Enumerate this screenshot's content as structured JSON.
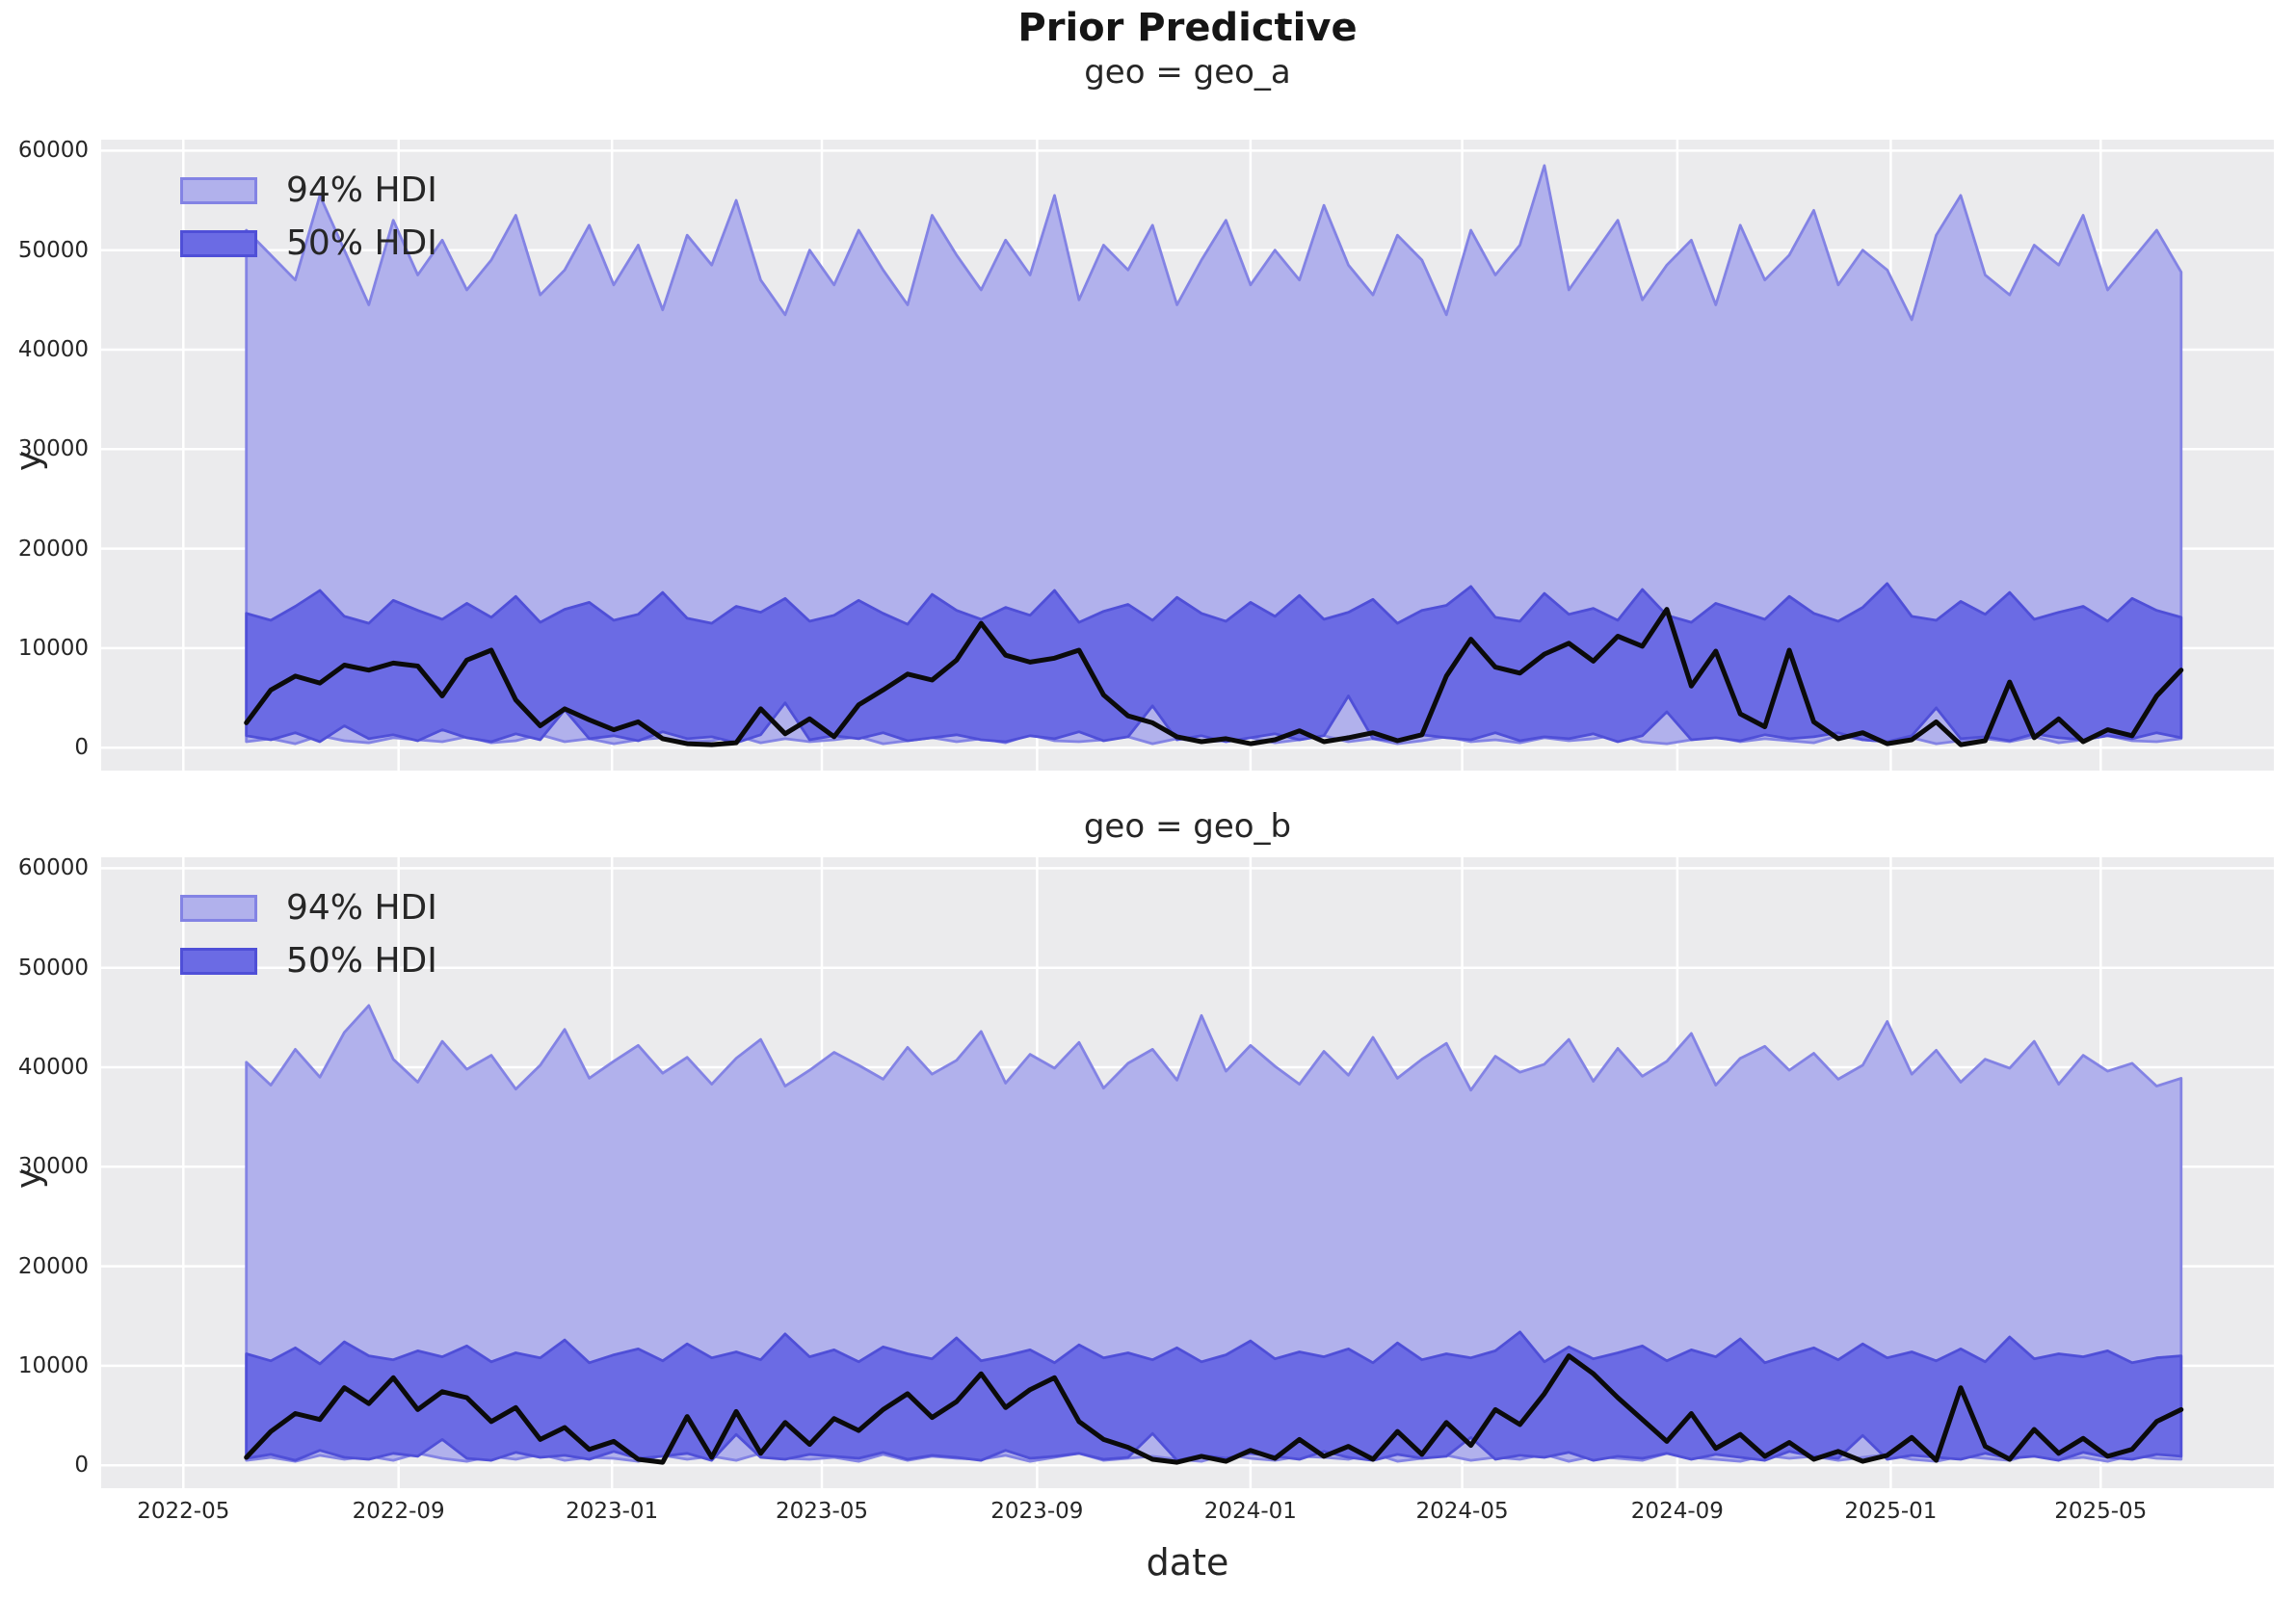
{
  "figure": {
    "title": "Prior Predictive"
  },
  "axis": {
    "xlabel": "date",
    "ylabel": "y"
  },
  "colors": {
    "axes_bg": "#ebebed",
    "grid": "#ffffff",
    "hdi94_fill": "#b1b1ec",
    "hdi94_edge": "#8383e4",
    "hdi50_fill": "#6b6be4",
    "hdi50_edge": "#4f4fd7",
    "observed_line": "#0b0b0b",
    "text": "#262626"
  },
  "legend": {
    "entries": [
      {
        "label": "94% HDI",
        "fill": "#b1b1ec",
        "edge": "#8383e4"
      },
      {
        "label": "50% HDI",
        "fill": "#6b6be4",
        "edge": "#4f4fd7"
      }
    ]
  },
  "chart_data": [
    {
      "type": "area",
      "title": "geo = geo_a",
      "xlabel": "date",
      "ylabel": "y",
      "x_start_date": "2022-06-06",
      "x_step_days": 14,
      "xlim_days": [
        -83,
        1159
      ],
      "ylim": [
        -2300,
        61100
      ],
      "grid": true,
      "legend_position": "upper-left",
      "yticks": [
        0,
        10000,
        20000,
        30000,
        40000,
        50000,
        60000
      ],
      "xticks": [
        {
          "label": "2022-05",
          "day": -36
        },
        {
          "label": "2022-09",
          "day": 87
        },
        {
          "label": "2023-01",
          "day": 209
        },
        {
          "label": "2023-05",
          "day": 329
        },
        {
          "label": "2023-09",
          "day": 452
        },
        {
          "label": "2024-01",
          "day": 574
        },
        {
          "label": "2024-05",
          "day": 695
        },
        {
          "label": "2024-09",
          "day": 818
        },
        {
          "label": "2025-01",
          "day": 940
        },
        {
          "label": "2025-05",
          "day": 1060
        }
      ],
      "hdi_94": {
        "upper": [
          52000,
          49500,
          47000,
          55500,
          50000,
          44500,
          53000,
          47500,
          51000,
          46000,
          49000,
          53500,
          45500,
          48000,
          52500,
          46500,
          50500,
          44000,
          51500,
          48500,
          55000,
          47000,
          43500,
          50000,
          46500,
          52000,
          48000,
          44500,
          53500,
          49500,
          46000,
          51000,
          47500,
          55500,
          45000,
          50500,
          48000,
          52500,
          44500,
          49000,
          53000,
          46500,
          50000,
          47000,
          54500,
          48500,
          45500,
          51500,
          49000,
          43500,
          52000,
          47500,
          50500,
          58500,
          46000,
          49500,
          53000,
          45000,
          48500,
          51000,
          44500,
          52500,
          47000,
          49500,
          54000,
          46500,
          50000,
          48000,
          43000,
          51500,
          55500,
          47500,
          45500,
          50500,
          48500,
          53500,
          46000,
          49000,
          52000,
          47800
        ],
        "lower": [
          600,
          900,
          400,
          1200,
          700,
          500,
          1000,
          800,
          600,
          1100,
          500,
          700,
          1300,
          600,
          900,
          400,
          800,
          1000,
          600,
          700,
          1200,
          500,
          900,
          600,
          800,
          1100,
          400,
          700,
          1000,
          600,
          900,
          500,
          1300,
          700,
          600,
          800,
          1100,
          400,
          900,
          600,
          700,
          1000,
          500,
          800,
          1200,
          600,
          900,
          400,
          700,
          1100,
          600,
          800,
          500,
          1000,
          700,
          900,
          1300,
          600,
          400,
          800,
          1100,
          600,
          900,
          700,
          500,
          1200,
          800,
          600,
          1000,
          400,
          700,
          900,
          600,
          1100,
          500,
          800,
          1200,
          700,
          600,
          900
        ]
      },
      "hdi_50": {
        "upper": [
          13500,
          12800,
          14200,
          15800,
          13200,
          12500,
          14800,
          13800,
          12900,
          14500,
          13100,
          15200,
          12600,
          13900,
          14600,
          12800,
          13400,
          15600,
          13000,
          12500,
          14200,
          13600,
          15000,
          12700,
          13300,
          14800,
          13500,
          12400,
          15400,
          13800,
          12900,
          14100,
          13300,
          15800,
          12600,
          13700,
          14400,
          12800,
          15100,
          13500,
          12700,
          14600,
          13200,
          15300,
          12900,
          13600,
          14900,
          12500,
          13800,
          14300,
          16200,
          13100,
          12700,
          15500,
          13400,
          14000,
          12800,
          15900,
          13300,
          12600,
          14500,
          13700,
          12900,
          15200,
          13500,
          12700,
          14100,
          16500,
          13200,
          12800,
          14700,
          13400,
          15600,
          12900,
          13600,
          14200,
          12700,
          15000,
          13800,
          13100
        ],
        "lower": [
          1200,
          800,
          1500,
          600,
          2200,
          900,
          1300,
          700,
          1800,
          1000,
          600,
          1400,
          800,
          3800,
          900,
          1200,
          700,
          1600,
          900,
          1100,
          500,
          1300,
          4500,
          800,
          1200,
          900,
          1500,
          700,
          1000,
          1300,
          800,
          600,
          1200,
          900,
          1600,
          700,
          1100,
          4200,
          800,
          1200,
          600,
          1000,
          1400,
          800,
          1200,
          5200,
          900,
          700,
          1300,
          1000,
          800,
          1500,
          700,
          1100,
          900,
          1400,
          600,
          1200,
          3600,
          800,
          1000,
          700,
          1300,
          900,
          1100,
          1500,
          800,
          600,
          1200,
          4000,
          900,
          1100,
          700,
          1400,
          1000,
          800,
          1200,
          900,
          1500,
          1000
        ]
      },
      "observed": [
        2500,
        5800,
        7200,
        6500,
        8300,
        7800,
        8500,
        8200,
        5200,
        8800,
        9800,
        4800,
        2200,
        3900,
        2800,
        1800,
        2600,
        900,
        400,
        300,
        500,
        3900,
        1400,
        2900,
        1100,
        4300,
        5800,
        7400,
        6800,
        8800,
        12500,
        9300,
        8600,
        9000,
        9800,
        5300,
        3200,
        2500,
        1100,
        600,
        900,
        400,
        800,
        1700,
        600,
        1000,
        1500,
        700,
        1300,
        7200,
        10900,
        8100,
        7500,
        9400,
        10500,
        8700,
        11200,
        10200,
        13900,
        6200,
        9700,
        3400,
        2100,
        9800,
        2600,
        900,
        1500,
        400,
        800,
        2600,
        300,
        700,
        6600,
        1000,
        2900,
        600,
        1800,
        1200,
        5200,
        7800
      ]
    },
    {
      "type": "area",
      "title": "geo = geo_b",
      "xlabel": "date",
      "ylabel": "y",
      "x_start_date": "2022-06-06",
      "x_step_days": 14,
      "xlim_days": [
        -83,
        1159
      ],
      "ylim": [
        -2300,
        61100
      ],
      "grid": true,
      "legend_position": "upper-left",
      "yticks": [
        0,
        10000,
        20000,
        30000,
        40000,
        50000,
        60000
      ],
      "xticks": [
        {
          "label": "2022-05",
          "day": -36
        },
        {
          "label": "2022-09",
          "day": 87
        },
        {
          "label": "2023-01",
          "day": 209
        },
        {
          "label": "2023-05",
          "day": 329
        },
        {
          "label": "2023-09",
          "day": 452
        },
        {
          "label": "2024-01",
          "day": 574
        },
        {
          "label": "2024-05",
          "day": 695
        },
        {
          "label": "2024-09",
          "day": 818
        },
        {
          "label": "2025-01",
          "day": 940
        },
        {
          "label": "2025-05",
          "day": 1060
        }
      ],
      "hdi_94": {
        "upper": [
          40500,
          38200,
          41800,
          39000,
          43500,
          46200,
          40800,
          38500,
          42600,
          39800,
          41200,
          37800,
          40200,
          43800,
          38900,
          40600,
          42200,
          39400,
          41000,
          38300,
          40900,
          42800,
          38100,
          39700,
          41500,
          40200,
          38800,
          42000,
          39300,
          40700,
          43600,
          38400,
          41300,
          39900,
          42500,
          37900,
          40400,
          41800,
          38700,
          45200,
          39600,
          42200,
          40100,
          38300,
          41600,
          39200,
          43000,
          38900,
          40800,
          42400,
          37700,
          41100,
          39500,
          40300,
          42800,
          38600,
          41900,
          39100,
          40600,
          43400,
          38200,
          40900,
          42100,
          39700,
          41400,
          38800,
          40200,
          44600,
          39300,
          41700,
          38500,
          40800,
          39900,
          42600,
          38300,
          41200,
          39600,
          40400,
          38100,
          38900
        ],
        "lower": [
          500,
          800,
          400,
          1000,
          600,
          900,
          500,
          1200,
          700,
          400,
          900,
          600,
          1100,
          500,
          800,
          700,
          400,
          1000,
          600,
          900,
          500,
          1200,
          700,
          600,
          800,
          400,
          1100,
          500,
          900,
          700,
          600,
          1000,
          400,
          800,
          1200,
          500,
          700,
          900,
          600,
          400,
          1100,
          700,
          500,
          900,
          800,
          600,
          1200,
          400,
          700,
          1000,
          500,
          800,
          600,
          1100,
          400,
          900,
          700,
          500,
          1200,
          800,
          600,
          400,
          1000,
          700,
          900,
          500,
          800,
          1100,
          600,
          400,
          900,
          700,
          500,
          1200,
          600,
          800,
          400,
          1000,
          700,
          600
        ]
      },
      "hdi_50": {
        "upper": [
          11200,
          10500,
          11800,
          10200,
          12400,
          11000,
          10600,
          11500,
          10900,
          12000,
          10400,
          11300,
          10800,
          12600,
          10300,
          11100,
          11700,
          10500,
          12200,
          10800,
          11400,
          10600,
          13200,
          10900,
          11600,
          10400,
          11900,
          11200,
          10700,
          12800,
          10500,
          11000,
          11600,
          10300,
          12100,
          10800,
          11300,
          10600,
          11800,
          10400,
          11100,
          12500,
          10700,
          11400,
          10900,
          11700,
          10300,
          12300,
          10600,
          11200,
          10800,
          11500,
          13400,
          10400,
          11900,
          10700,
          11300,
          12000,
          10500,
          11600,
          10900,
          12700,
          10300,
          11100,
          11800,
          10600,
          12200,
          10800,
          11400,
          10500,
          11700,
          10400,
          12900,
          10700,
          11200,
          10900,
          11500,
          10300,
          10800,
          11000
        ],
        "lower": [
          700,
          1100,
          500,
          1500,
          800,
          600,
          1200,
          900,
          2600,
          700,
          500,
          1300,
          800,
          1000,
          600,
          1400,
          700,
          900,
          1200,
          500,
          3100,
          800,
          600,
          1100,
          900,
          700,
          1300,
          600,
          1000,
          800,
          500,
          1500,
          700,
          900,
          1200,
          600,
          800,
          3200,
          500,
          1000,
          700,
          1200,
          900,
          600,
          1400,
          800,
          500,
          1100,
          700,
          900,
          2800,
          600,
          1000,
          800,
          1300,
          500,
          900,
          700,
          1200,
          600,
          1100,
          800,
          500,
          1400,
          900,
          700,
          3000,
          600,
          1000,
          800,
          600,
          1200,
          700,
          900,
          500,
          1300,
          800,
          600,
          1100,
          900
        ]
      },
      "observed": [
        800,
        3400,
        5200,
        4600,
        7800,
        6200,
        8800,
        5600,
        7400,
        6800,
        4400,
        5800,
        2600,
        3800,
        1600,
        2400,
        600,
        300,
        4900,
        800,
        5400,
        1200,
        4300,
        2100,
        4700,
        3500,
        5600,
        7200,
        4800,
        6400,
        9200,
        5800,
        7600,
        8800,
        4400,
        2600,
        1800,
        600,
        300,
        900,
        400,
        1500,
        700,
        2600,
        900,
        1900,
        600,
        3400,
        1100,
        4300,
        2000,
        5600,
        4100,
        7200,
        11000,
        9200,
        6800,
        4600,
        2400,
        5200,
        1700,
        3100,
        900,
        2300,
        600,
        1400,
        400,
        1000,
        2800,
        500,
        7800,
        1900,
        600,
        3600,
        1200,
        2700,
        900,
        1600,
        4400,
        5600
      ]
    }
  ]
}
